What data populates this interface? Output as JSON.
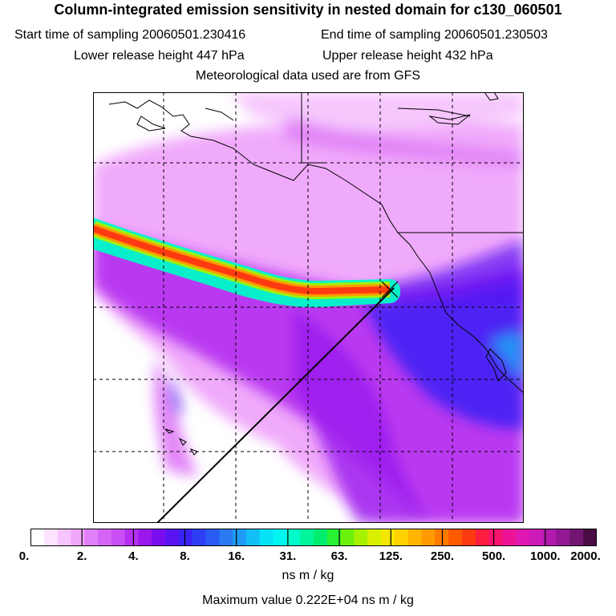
{
  "header": {
    "title": "Column-integrated emission sensitivity in nested domain for c130_060501",
    "start_label": "Start time of sampling 20060501.230416",
    "end_label": "End time of sampling 20060501.230503",
    "lower_label": "Lower release height  447 hPa",
    "upper_label": "Upper release height  432 hPa",
    "met_label": "Meteorological data used are from GFS"
  },
  "colorbar": {
    "ticks": [
      "0.",
      "2.",
      "4.",
      "8.",
      "16.",
      "31.",
      "63.",
      "125.",
      "250.",
      "500.",
      "1000.",
      "2000."
    ],
    "colors": [
      "#ffffff",
      "#fde3ff",
      "#f6c4fd",
      "#f0a6fb",
      "#e07ff7",
      "#d463f6",
      "#c94ef3",
      "#b42ff0",
      "#9a17ee",
      "#7a0cf0",
      "#5a14f2",
      "#3a22f4",
      "#2d3ff4",
      "#2a5cf5",
      "#2a7af4",
      "#1f9cf5",
      "#12bff7",
      "#06e2f8",
      "#00f6f0",
      "#00f9c8",
      "#00f59b",
      "#00ee6e",
      "#26f133",
      "#6cf20a",
      "#a7f200",
      "#d8f000",
      "#f3e600",
      "#ffd200",
      "#ffb500",
      "#ff9a00",
      "#ff7a00",
      "#ff5a00",
      "#ff3a10",
      "#fd1e40",
      "#f6136e",
      "#ee1396",
      "#e017b2",
      "#cc1ab8",
      "#b11aad",
      "#921894",
      "#711570",
      "#4a0c44"
    ],
    "units": "ns m / kg",
    "maximum": "Maximum value  0.222E+04 ns m / kg"
  },
  "legend_colors": {
    "low": "#f0a6fb",
    "mid": "#b42ff0",
    "high": "#3a22f4",
    "plume_edge": "#00f9c8",
    "plume_core": "#ff3a10"
  }
}
